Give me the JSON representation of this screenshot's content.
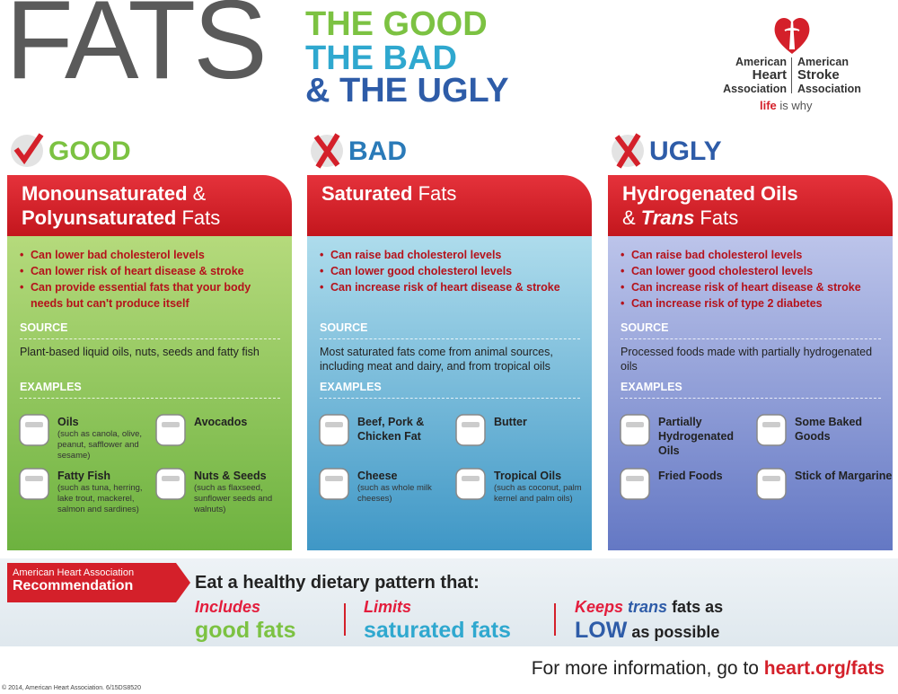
{
  "header": {
    "title": "FATS",
    "subtitle_lines": [
      "THE GOOD",
      "THE BAD",
      "& THE UGLY"
    ]
  },
  "logo": {
    "heart": [
      "American",
      "Heart",
      "Association"
    ],
    "stroke": [
      "American",
      "Stroke",
      "Association"
    ],
    "tagline": [
      "life",
      "is why"
    ]
  },
  "columns": [
    {
      "verdict": "GOOD",
      "mark": "check",
      "body_colors": [
        "#b5da7c",
        "#6db23f"
      ],
      "heading_color": "#7cc242",
      "title": [
        [
          {
            "text": "Monounsaturated",
            "bold": true
          },
          {
            "text": " &",
            "bold": false
          }
        ],
        [
          {
            "text": "Polyunsaturated",
            "bold": true
          },
          {
            "text": " Fats",
            "bold": false
          }
        ]
      ],
      "bullets": [
        "Can lower bad cholesterol levels",
        "Can lower risk of heart disease & stroke",
        "Can provide essential fats that your body needs but can't produce itself"
      ],
      "source_label": "SOURCE",
      "source": "Plant-based liquid oils, nuts, seeds and fatty fish",
      "examples_label": "EXAMPLES",
      "examples": [
        {
          "name": "Oils",
          "note": "(such as canola, olive, peanut, safflower and sesame)"
        },
        {
          "name": "Avocados"
        },
        {
          "name": "Fatty Fish",
          "note": "(such as tuna, herring, lake trout, mackerel, salmon and sardines)"
        },
        {
          "name": "Nuts & Seeds",
          "note": "(such as flaxseed, sunflower seeds and walnuts)"
        }
      ]
    },
    {
      "verdict": "BAD",
      "mark": "cross",
      "body_colors": [
        "#aedcec",
        "#3f97c6"
      ],
      "heading_color": "#2a7ab8",
      "title": [
        [
          {
            "text": "Saturated",
            "bold": true
          },
          {
            "text": " Fats",
            "bold": false
          }
        ]
      ],
      "bullets": [
        "Can raise bad cholesterol levels",
        "Can lower good cholesterol levels",
        "Can increase risk of heart disease & stroke"
      ],
      "source_label": "SOURCE",
      "source": "Most saturated fats come from animal sources, including meat and dairy, and from tropical oils",
      "examples_label": "EXAMPLES",
      "examples": [
        {
          "name": "Beef, Pork & Chicken Fat"
        },
        {
          "name": "Butter"
        },
        {
          "name": "Cheese",
          "note": "(such as whole milk cheeses)"
        },
        {
          "name": "Tropical Oils",
          "note": "(such as coconut, palm kernel and palm oils)"
        }
      ]
    },
    {
      "verdict": "UGLY",
      "mark": "cross",
      "body_colors": [
        "#bcc4ea",
        "#6478c4"
      ],
      "heading_color": "#2e5ca8",
      "title": [
        [
          {
            "text": "Hydrogenated Oils",
            "bold": true
          }
        ],
        [
          {
            "text": "& ",
            "bold": false
          },
          {
            "text": "Trans",
            "bold": true,
            "italic": true
          },
          {
            "text": " Fats",
            "bold": false
          }
        ]
      ],
      "bullets": [
        "Can raise bad cholesterol levels",
        "Can lower good cholesterol levels",
        "Can increase risk of heart disease & stroke",
        "Can increase risk of type 2 diabetes"
      ],
      "source_label": "SOURCE",
      "source": "Processed foods made with partially hydrogenated oils",
      "examples_label": "EXAMPLES",
      "examples": [
        {
          "name": "Partially Hydrogenated Oils"
        },
        {
          "name": "Some Baked Goods"
        },
        {
          "name": "Fried Foods"
        },
        {
          "name": "Stick of Margarine"
        }
      ]
    }
  ],
  "recommendation": {
    "badge": [
      "American Heart Association",
      "Recommendation"
    ],
    "lead": "Eat a healthy dietary pattern that:",
    "items": [
      [
        [
          {
            "text": "Includes",
            "color": "#e31d3c",
            "italic": true
          }
        ],
        [
          {
            "text": "good fats",
            "color": "#7cc242",
            "emphasis": true
          }
        ]
      ],
      [
        [
          {
            "text": "Limits",
            "color": "#e31d3c",
            "italic": true
          }
        ],
        [
          {
            "text": "saturated fats",
            "color": "#2fa8cf",
            "emphasis": true
          }
        ]
      ],
      [
        [
          {
            "text": "Keeps",
            "color": "#e31d3c",
            "italic": true
          },
          {
            "text": " trans",
            "color": "#2e5ca8",
            "italic": true
          },
          {
            "text": " fats as",
            "color": "#222222"
          }
        ],
        [
          {
            "text": "LOW",
            "color": "#2e5ca8",
            "emphasis": true
          },
          {
            "text": " as possible",
            "color": "#222222"
          }
        ]
      ]
    ]
  },
  "footer": {
    "text": [
      "For more information, go to ",
      "heart.org/fats"
    ],
    "copyright": "© 2014, American Heart Association. 6/15DS8520"
  }
}
